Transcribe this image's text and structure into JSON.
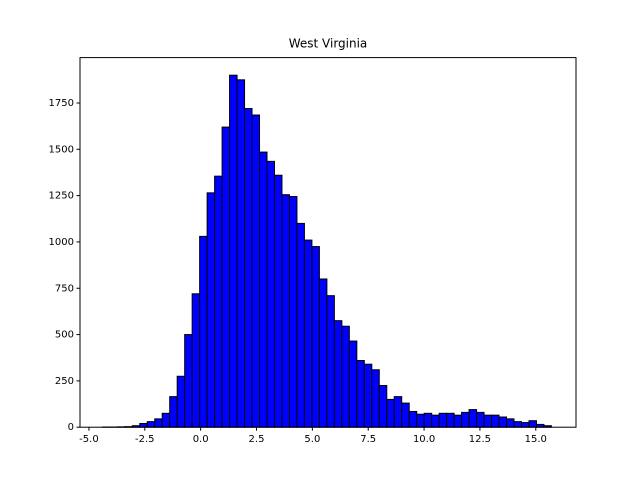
{
  "chart_data": {
    "type": "histogram",
    "title": "West Virginia",
    "bins": [
      -4.4,
      -4.065,
      -3.73,
      -3.395,
      -3.06,
      -2.725,
      -2.39,
      -2.055,
      -1.72,
      -1.385,
      -1.05,
      -0.715,
      -0.38,
      -0.045,
      0.29,
      0.625,
      0.96,
      1.295,
      1.63,
      1.965,
      2.3,
      2.635,
      2.97,
      3.305,
      3.64,
      3.975,
      4.31,
      4.645,
      4.98,
      5.315,
      5.65,
      5.985,
      6.32,
      6.655,
      6.99,
      7.325,
      7.66,
      7.995,
      8.33,
      8.665,
      9.0,
      9.335,
      9.67,
      10.005,
      10.34,
      10.675,
      11.01,
      11.345,
      11.68,
      12.015,
      12.35,
      12.685,
      13.02,
      13.355,
      13.69,
      14.025,
      14.36,
      14.695,
      15.03,
      15.365,
      15.7
    ],
    "values": [
      1,
      1,
      2,
      3,
      8,
      20,
      30,
      45,
      75,
      165,
      275,
      500,
      720,
      1030,
      1265,
      1355,
      1620,
      1900,
      1875,
      1720,
      1685,
      1485,
      1435,
      1360,
      1255,
      1245,
      1100,
      1010,
      975,
      800,
      710,
      575,
      545,
      465,
      360,
      340,
      310,
      225,
      150,
      165,
      130,
      85,
      70,
      75,
      65,
      75,
      75,
      65,
      80,
      95,
      80,
      65,
      65,
      55,
      45,
      30,
      25,
      35,
      15,
      8
    ],
    "color": "#0000ff",
    "edgecolor": "#000000",
    "xlim": [
      -5.4,
      16.8
    ],
    "xticks": [
      {
        "value": -5,
        "label": "-5.0"
      },
      {
        "value": -2.5,
        "label": "-2.5"
      },
      {
        "value": 0,
        "label": "0.0"
      },
      {
        "value": 2.5,
        "label": "2.5"
      },
      {
        "value": 5,
        "label": "5.0"
      },
      {
        "value": 7.5,
        "label": "7.5"
      },
      {
        "value": 10,
        "label": "10.0"
      },
      {
        "value": 12.5,
        "label": "12.5"
      },
      {
        "value": 15,
        "label": "15.0"
      }
    ],
    "ylim": [
      0,
      1995
    ],
    "yticks": [
      0,
      250,
      500,
      750,
      1000,
      1250,
      1500,
      1750
    ]
  }
}
